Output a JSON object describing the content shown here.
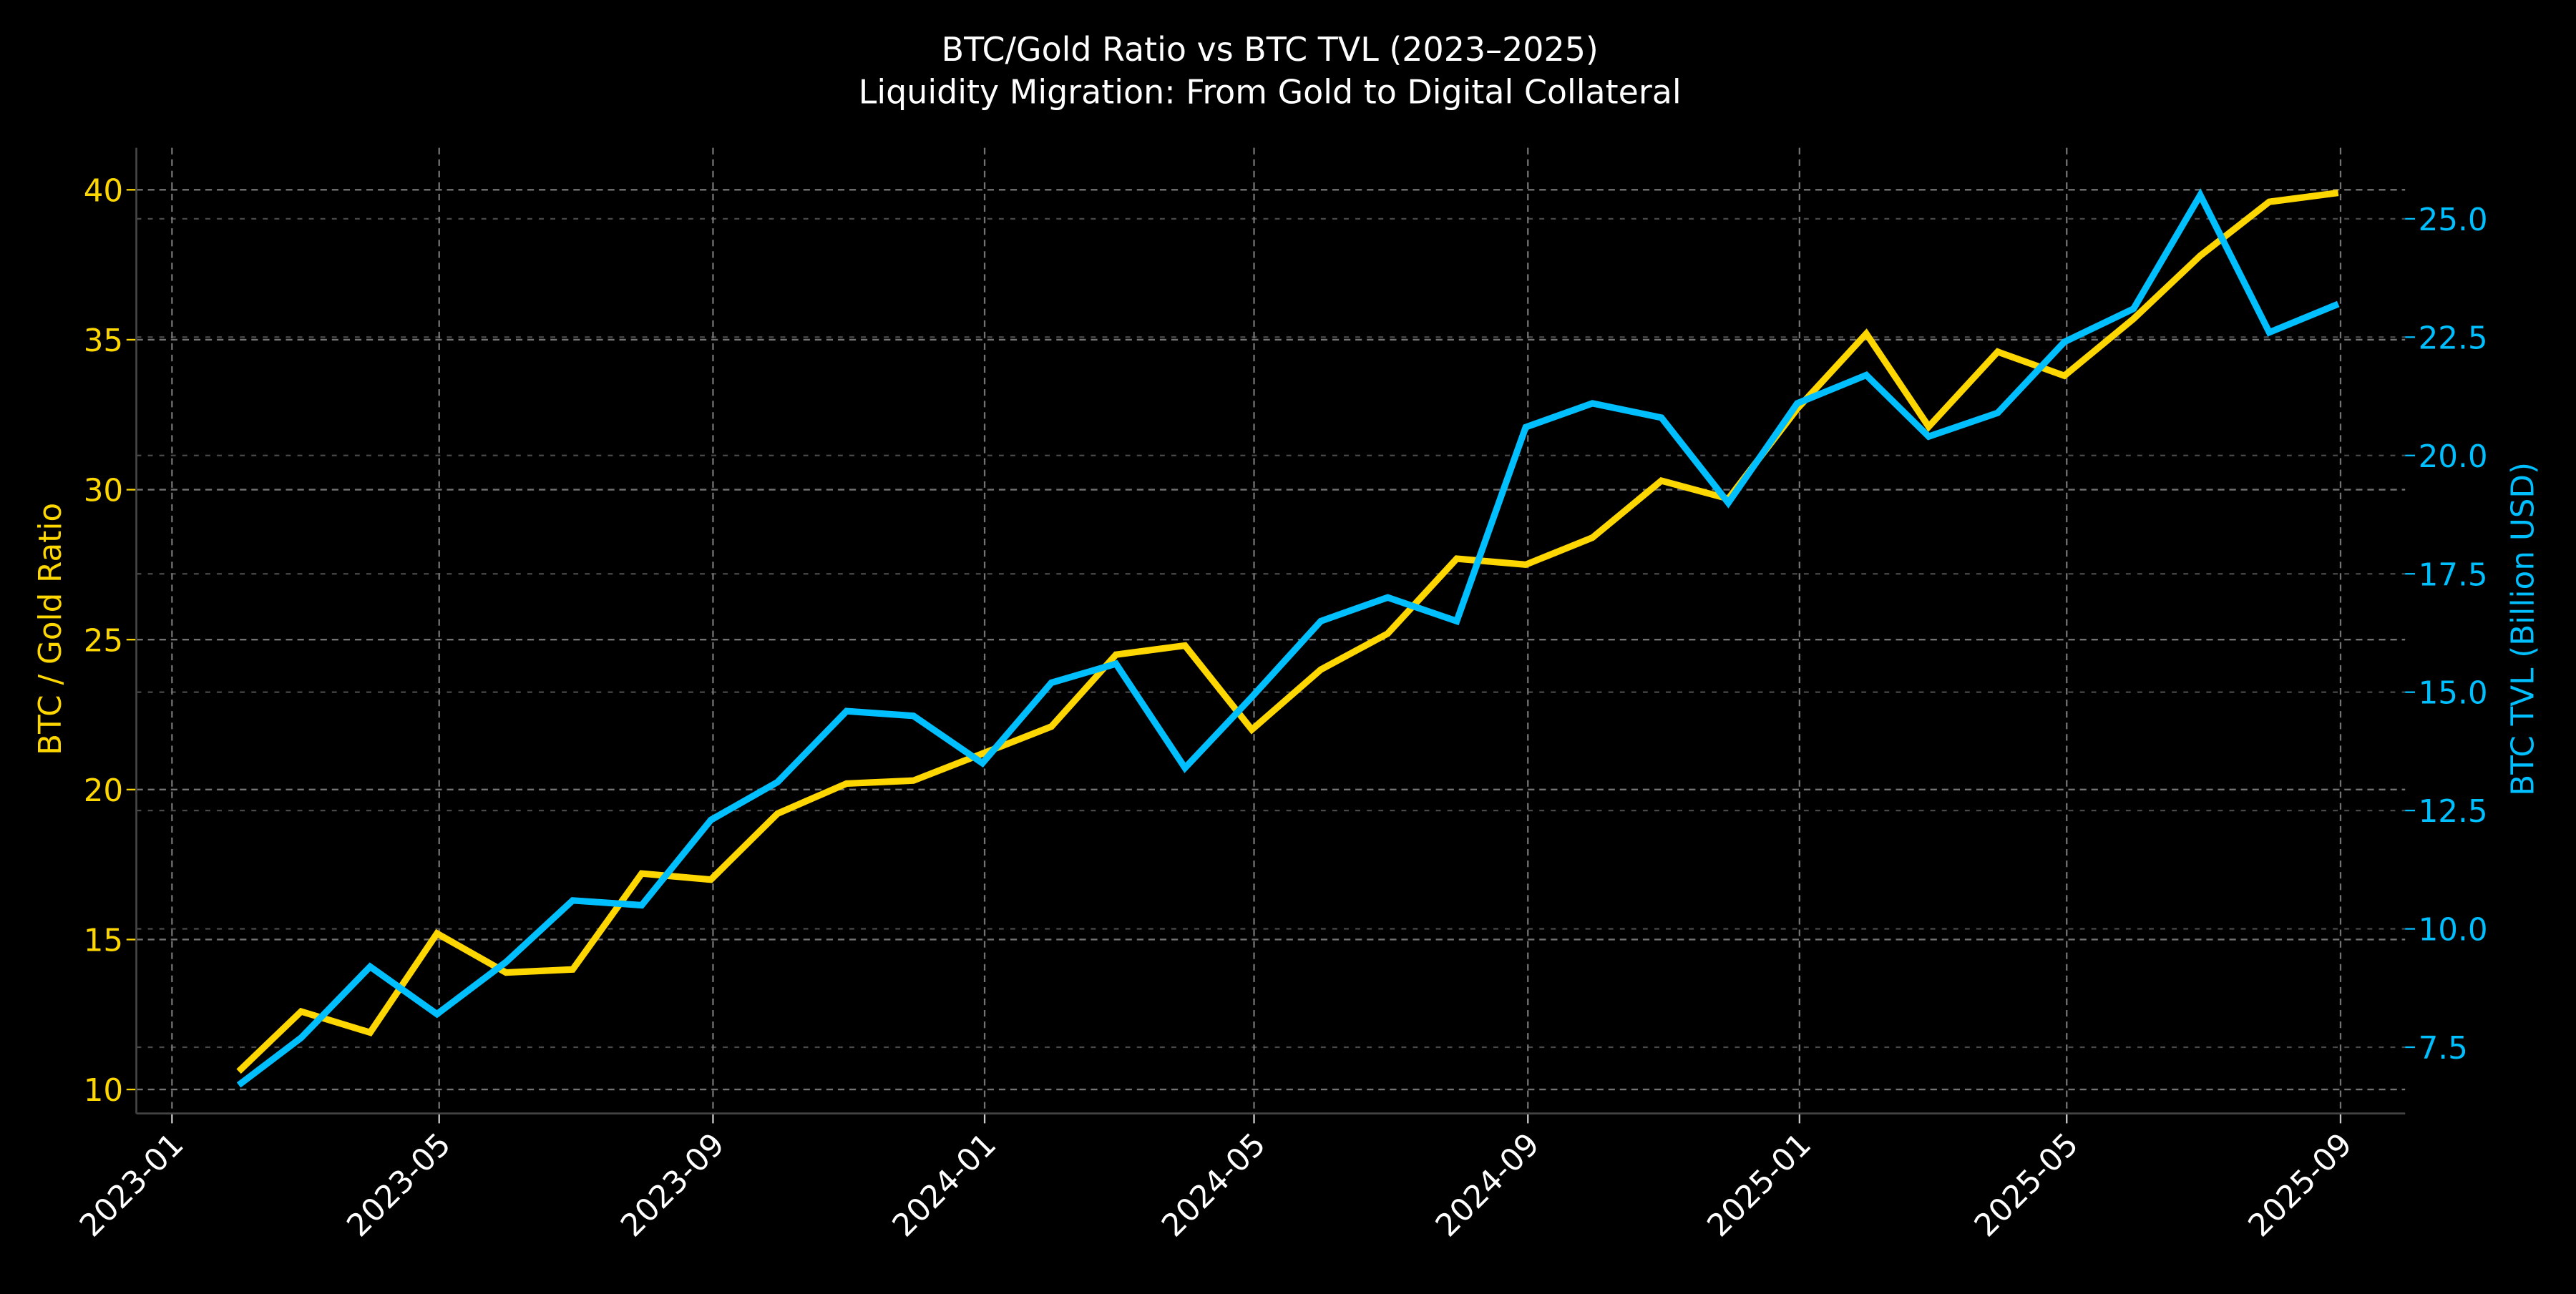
{
  "chart_data": {
    "type": "line",
    "title": "BTC/Gold Ratio vs BTC TVL (2023–2025)",
    "subtitle": "Liquidity Migration: From Gold to Digital Collateral",
    "xlabel": "",
    "x_ticks": [
      "2023-01",
      "2023-05",
      "2023-09",
      "2024-01",
      "2024-05",
      "2024-09",
      "2025-01",
      "2025-05",
      "2025-09"
    ],
    "x": [
      "2023-01-31",
      "2023-02-28",
      "2023-03-31",
      "2023-04-30",
      "2023-05-31",
      "2023-06-30",
      "2023-07-31",
      "2023-08-31",
      "2023-09-30",
      "2023-10-31",
      "2023-11-30",
      "2023-12-31",
      "2024-01-31",
      "2024-02-29",
      "2024-03-31",
      "2024-04-30",
      "2024-05-31",
      "2024-06-30",
      "2024-07-31",
      "2024-08-31",
      "2024-09-30",
      "2024-10-31",
      "2024-11-30",
      "2024-12-31",
      "2025-01-31",
      "2025-02-28",
      "2025-03-31",
      "2025-04-30",
      "2025-05-31",
      "2025-06-30",
      "2025-07-31",
      "2025-08-31"
    ],
    "left_axis": {
      "label": "BTC / Gold Ratio",
      "ylim": [
        9.2,
        41.4
      ],
      "ticks": [
        "10",
        "15",
        "20",
        "25",
        "30",
        "35",
        "40"
      ],
      "color": "#FFD700"
    },
    "right_axis": {
      "label": "BTC TVL (Billion USD)",
      "ylim": [
        6.1,
        26.5
      ],
      "ticks": [
        "7.5",
        "10.0",
        "12.5",
        "15.0",
        "17.5",
        "20.0",
        "22.5",
        "25.0"
      ],
      "color": "#00BFFF"
    },
    "grid": true,
    "series": [
      {
        "axis": "left",
        "color": "#FFD700",
        "values": [
          10.6,
          12.6,
          11.9,
          15.2,
          13.9,
          14.0,
          17.2,
          17.0,
          19.2,
          20.2,
          20.3,
          21.2,
          22.1,
          24.5,
          24.8,
          22.0,
          24.0,
          25.2,
          27.7,
          27.5,
          28.4,
          30.3,
          29.7,
          32.7,
          35.2,
          32.1,
          34.6,
          33.8,
          35.7,
          37.8,
          39.6,
          39.9
        ]
      },
      {
        "axis": "right",
        "color": "#00BFFF",
        "values": [
          6.7,
          7.7,
          9.2,
          8.2,
          9.3,
          10.6,
          10.5,
          12.3,
          13.1,
          14.6,
          14.5,
          13.5,
          15.2,
          15.6,
          13.4,
          14.9,
          16.5,
          17.0,
          16.5,
          20.6,
          21.1,
          20.8,
          19.0,
          21.1,
          21.7,
          20.4,
          20.9,
          22.4,
          23.1,
          25.5,
          22.6,
          23.2
        ]
      }
    ]
  }
}
